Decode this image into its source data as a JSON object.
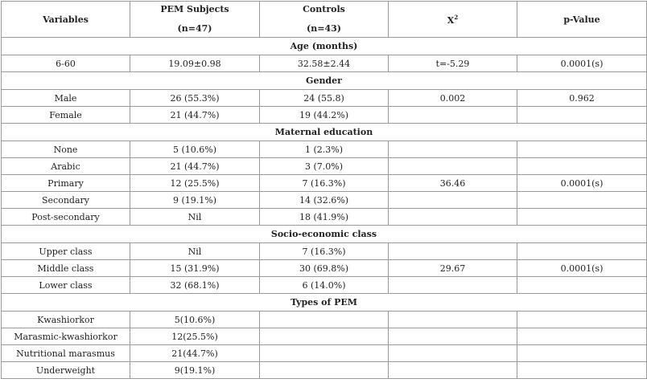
{
  "headers": {
    "variables": "Variables",
    "pem_line1": "PEM Subjects",
    "pem_line2": "(n=47)",
    "controls_line1": "Controls",
    "controls_line2": "(n=43)",
    "x2_base": "X",
    "x2_sup": "2",
    "pvalue": "p-Value"
  },
  "sections": [
    {
      "title": "Age (months)",
      "rows": [
        {
          "variable": "6-60",
          "pem": "19.09±0.98",
          "controls": "32.58±2.44"
        }
      ],
      "x2": "t=-5.29",
      "p": "0.0001(s)"
    },
    {
      "title": "Gender",
      "rows": [
        {
          "variable": "Male",
          "pem": "26 (55.3%)",
          "controls": "24 (55.8)"
        },
        {
          "variable": "Female",
          "pem": "21 (44.7%)",
          "controls": "19 (44.2%)"
        }
      ],
      "x2": "0.002",
      "p": "0.962"
    },
    {
      "title": "Maternal education",
      "rows": [
        {
          "variable": "None",
          "pem": "5 (10.6%)",
          "controls": "1 (2.3%)"
        },
        {
          "variable": "Arabic",
          "pem": "21 (44.7%)",
          "controls": "3 (7.0%)"
        },
        {
          "variable": "Primary",
          "pem": "12 (25.5%)",
          "controls": "7 (16.3%)"
        },
        {
          "variable": "Secondary",
          "pem": "9 (19.1%)",
          "controls": "14 (32.6%)"
        },
        {
          "variable": "Post-secondary",
          "pem": "Nil",
          "controls": "18 (41.9%)"
        }
      ],
      "x2": "36.46",
      "p": "0.0001(s)"
    },
    {
      "title": "Socio-economic class",
      "rows": [
        {
          "variable": "Upper class",
          "pem": "Nil",
          "controls": "7 (16.3%)"
        },
        {
          "variable": "Middle class",
          "pem": "15 (31.9%)",
          "controls": "30 (69.8%)"
        },
        {
          "variable": "Lower class",
          "pem": "32 (68.1%)",
          "controls": "6 (14.0%)"
        }
      ],
      "x2": "29.67",
      "p": "0.0001(s)"
    },
    {
      "title": "Types of PEM",
      "rows": [
        {
          "variable": "Kwashiorkor",
          "pem": "5(10.6%)",
          "controls": ""
        },
        {
          "variable": "Marasmic-kwashiorkor",
          "pem": "12(25.5%)",
          "controls": ""
        },
        {
          "variable": "Nutritional marasmus",
          "pem": "21(44.7%)",
          "controls": ""
        },
        {
          "variable": "Underweight",
          "pem": "9(19.1%)",
          "controls": ""
        }
      ],
      "x2": "",
      "p": ""
    }
  ]
}
